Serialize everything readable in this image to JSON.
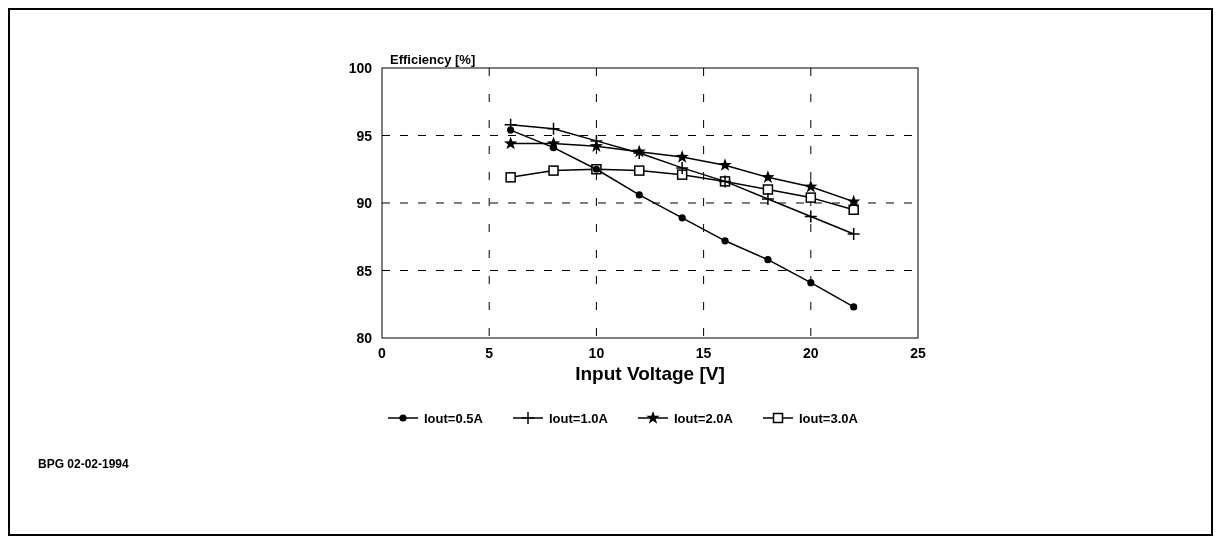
{
  "chart_data": {
    "type": "line",
    "ylabel": "Efficiency [%]",
    "xlabel": "Input Voltage [V]",
    "x": [
      6,
      8,
      10,
      12,
      14,
      16,
      18,
      20,
      22
    ],
    "xlim": [
      0,
      25
    ],
    "xticks": [
      0,
      5,
      10,
      15,
      20,
      25
    ],
    "ylim": [
      80,
      100
    ],
    "yticks": [
      80,
      85,
      90,
      95,
      100
    ],
    "grid": true,
    "legend": "bottom",
    "line_style": "solid",
    "series": [
      {
        "name": "Iout=0.5A",
        "color": "#000000",
        "marker": "circle",
        "values": [
          95.4,
          94.1,
          92.5,
          90.6,
          88.9,
          87.2,
          85.8,
          84.1,
          82.3
        ]
      },
      {
        "name": "Iout=1.0A",
        "color": "#000000",
        "marker": "cross",
        "values": [
          95.8,
          95.5,
          94.6,
          93.7,
          92.6,
          91.6,
          90.3,
          89.0,
          87.7
        ]
      },
      {
        "name": "Iout=2.0A",
        "color": "#000000",
        "marker": "star",
        "values": [
          94.4,
          94.4,
          94.2,
          93.8,
          93.4,
          92.8,
          91.9,
          91.2,
          90.1
        ]
      },
      {
        "name": "Iout=3.0A",
        "color": "#000000",
        "marker": "square",
        "values": [
          91.9,
          92.4,
          92.5,
          92.4,
          92.1,
          91.6,
          91.0,
          90.4,
          89.5
        ]
      }
    ],
    "annotations": [
      "BPG 02-02-1994"
    ]
  }
}
